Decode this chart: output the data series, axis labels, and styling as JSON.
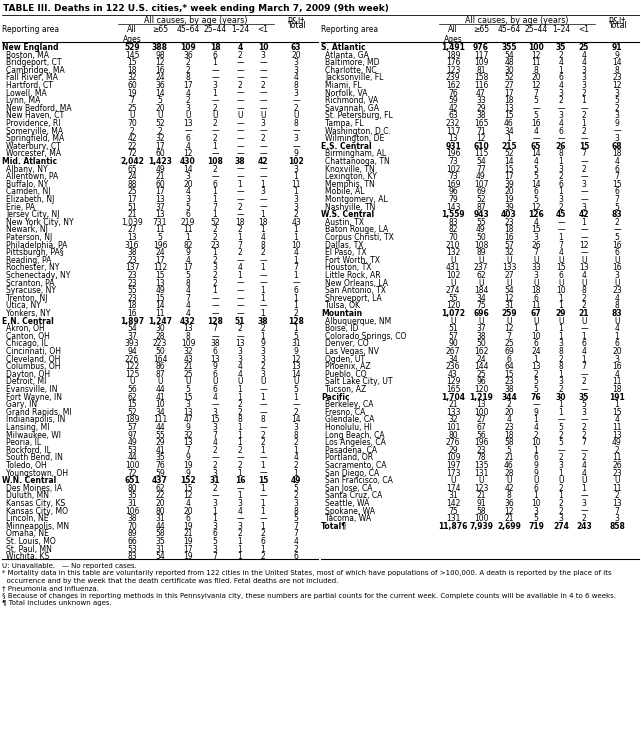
{
  "title": "TABLE III. Deaths in 122 U.S. cities,* week ending March 7, 2009 (9th week)",
  "left_rows": [
    [
      "New England",
      "529",
      "388",
      "109",
      "18",
      "4",
      "10",
      "63"
    ],
    [
      "Boston, MA",
      "145",
      "98",
      "36",
      "6",
      "2",
      "3",
      "20"
    ],
    [
      "Bridgeport, CT",
      "15",
      "12",
      "2",
      "1",
      "—",
      "—",
      "3"
    ],
    [
      "Cambridge, MA",
      "18",
      "16",
      "2",
      "—",
      "—",
      "—",
      "3"
    ],
    [
      "Fall River, MA",
      "32",
      "24",
      "8",
      "—",
      "—",
      "—",
      "4"
    ],
    [
      "Hartford, CT",
      "60",
      "36",
      "17",
      "3",
      "2",
      "2",
      "8"
    ],
    [
      "Lowell, MA",
      "19",
      "14",
      "4",
      "1",
      "—",
      "—",
      "3"
    ],
    [
      "Lynn, MA",
      "7",
      "5",
      "2",
      "—",
      "—",
      "—",
      "—"
    ],
    [
      "New Bedford, MA",
      "25",
      "20",
      "3",
      "2",
      "—",
      "—",
      "2"
    ],
    [
      "New Haven, CT",
      "U",
      "U",
      "U",
      "U",
      "U",
      "U",
      "U"
    ],
    [
      "Providence, RI",
      "70",
      "52",
      "13",
      "2",
      "—",
      "3",
      "8"
    ],
    [
      "Somerville, MA",
      "2",
      "2",
      "—",
      "—",
      "—",
      "—",
      "—"
    ],
    [
      "Springfield, MA",
      "42",
      "32",
      "6",
      "2",
      "—",
      "2",
      "3"
    ],
    [
      "Waterbury, CT",
      "22",
      "17",
      "4",
      "1",
      "—",
      "—",
      "—"
    ],
    [
      "Worcester, MA",
      "72",
      "60",
      "12",
      "—",
      "—",
      "—",
      "9"
    ],
    [
      "Mid. Atlantic",
      "2,042",
      "1,423",
      "430",
      "108",
      "38",
      "42",
      "102"
    ],
    [
      "Albany, NY",
      "65",
      "49",
      "14",
      "2",
      "—",
      "—",
      "3"
    ],
    [
      "Allentown, PA",
      "24",
      "21",
      "3",
      "—",
      "—",
      "—",
      "1"
    ],
    [
      "Buffalo, NY",
      "88",
      "60",
      "20",
      "6",
      "1",
      "1",
      "11"
    ],
    [
      "Camden, NJ",
      "25",
      "17",
      "4",
      "1",
      "—",
      "3",
      "1"
    ],
    [
      "Elizabeth, NJ",
      "17",
      "13",
      "3",
      "1",
      "—",
      "—",
      "3"
    ],
    [
      "Erie, PA",
      "51",
      "37",
      "5",
      "7",
      "2",
      "—",
      "3"
    ],
    [
      "Jersey City, NJ",
      "21",
      "13",
      "6",
      "1",
      "—",
      "1",
      "2"
    ],
    [
      "New York City, NY",
      "1,039",
      "731",
      "219",
      "52",
      "18",
      "18",
      "43"
    ],
    [
      "Newark, NJ",
      "27",
      "11",
      "11",
      "2",
      "2",
      "1",
      "1"
    ],
    [
      "Paterson, NJ",
      "13",
      "5",
      "1",
      "2",
      "1",
      "4",
      "1"
    ],
    [
      "Philadelphia, PA",
      "316",
      "196",
      "82",
      "23",
      "7",
      "8",
      "10"
    ],
    [
      "Pittsburgh, PA§",
      "38",
      "24",
      "9",
      "1",
      "2",
      "2",
      "4"
    ],
    [
      "Reading, PA",
      "23",
      "17",
      "4",
      "2",
      "—",
      "—",
      "1"
    ],
    [
      "Rochester, NY",
      "137",
      "112",
      "17",
      "3",
      "4",
      "1",
      "7"
    ],
    [
      "Schenectady, NY",
      "23",
      "15",
      "5",
      "2",
      "1",
      "—",
      "1"
    ],
    [
      "Scranton, PA",
      "23",
      "13",
      "8",
      "2",
      "—",
      "—",
      "—"
    ],
    [
      "Syracuse, NY",
      "55",
      "49",
      "4",
      "1",
      "—",
      "1",
      "6"
    ],
    [
      "Trenton, NJ",
      "23",
      "15",
      "7",
      "—",
      "—",
      "1",
      "1"
    ],
    [
      "Utica, NY",
      "18",
      "14",
      "4",
      "—",
      "—",
      "—",
      "1"
    ],
    [
      "Yonkers, NY",
      "16",
      "11",
      "4",
      "—",
      "—",
      "1",
      "2"
    ],
    [
      "E.N. Central",
      "1,897",
      "1,247",
      "432",
      "128",
      "51",
      "38",
      "128"
    ],
    [
      "Akron, OH",
      "54",
      "30",
      "13",
      "7",
      "2",
      "2",
      "1"
    ],
    [
      "Canton, OH",
      "37",
      "28",
      "8",
      "—",
      "—",
      "1",
      "5"
    ],
    [
      "Chicago, IL",
      "393",
      "223",
      "109",
      "38",
      "13",
      "9",
      "31"
    ],
    [
      "Cincinnati, OH",
      "94",
      "50",
      "32",
      "6",
      "3",
      "3",
      "9"
    ],
    [
      "Cleveland, OH",
      "226",
      "164",
      "43",
      "13",
      "3",
      "3",
      "12"
    ],
    [
      "Columbus, OH",
      "122",
      "86",
      "21",
      "9",
      "4",
      "2",
      "13"
    ],
    [
      "Dayton, OH",
      "125",
      "87",
      "25",
      "6",
      "4",
      "3",
      "14"
    ],
    [
      "Detroit, MI",
      "U",
      "U",
      "U",
      "U",
      "U",
      "U",
      "U"
    ],
    [
      "Evansville, IN",
      "56",
      "44",
      "5",
      "6",
      "1",
      "—",
      "5"
    ],
    [
      "Fort Wayne, IN",
      "62",
      "41",
      "15",
      "4",
      "1",
      "1",
      "1"
    ],
    [
      "Gary, IN",
      "15",
      "10",
      "3",
      "—",
      "2",
      "—",
      "—"
    ],
    [
      "Grand Rapids, MI",
      "52",
      "34",
      "13",
      "3",
      "2",
      "—",
      "2"
    ],
    [
      "Indianapolis, IN",
      "189",
      "111",
      "47",
      "15",
      "8",
      "8",
      "14"
    ],
    [
      "Lansing, MI",
      "57",
      "44",
      "9",
      "3",
      "1",
      "—",
      "3"
    ],
    [
      "Milwaukee, WI",
      "97",
      "55",
      "32",
      "7",
      "1",
      "2",
      "8"
    ],
    [
      "Peoria, IL",
      "49",
      "29",
      "13",
      "4",
      "1",
      "2",
      "2"
    ],
    [
      "Rockford, IL",
      "53",
      "41",
      "7",
      "2",
      "2",
      "1",
      "1"
    ],
    [
      "South Bend, IN",
      "44",
      "35",
      "9",
      "—",
      "—",
      "—",
      "4"
    ],
    [
      "Toledo, OH",
      "100",
      "76",
      "19",
      "2",
      "2",
      "1",
      "2"
    ],
    [
      "Youngstown, OH",
      "72",
      "59",
      "9",
      "3",
      "1",
      "—",
      "1"
    ],
    [
      "W.N. Central",
      "651",
      "437",
      "152",
      "31",
      "16",
      "15",
      "49"
    ],
    [
      "Des Moines, IA",
      "80",
      "62",
      "15",
      "2",
      "—",
      "1",
      "5"
    ],
    [
      "Duluth, MN",
      "35",
      "22",
      "12",
      "—",
      "1",
      "—",
      "2"
    ],
    [
      "Kansas City, KS",
      "31",
      "20",
      "4",
      "3",
      "3",
      "1",
      "3"
    ],
    [
      "Kansas City, MO",
      "106",
      "80",
      "20",
      "1",
      "4",
      "1",
      "8"
    ],
    [
      "Lincoln, NE",
      "38",
      "31",
      "6",
      "1",
      "—",
      "—",
      "5"
    ],
    [
      "Minneapolis, MN",
      "70",
      "44",
      "19",
      "3",
      "3",
      "1",
      "7"
    ],
    [
      "Omaha, NE",
      "89",
      "58",
      "21",
      "6",
      "2",
      "2",
      "7"
    ],
    [
      "St. Louis, MO",
      "66",
      "35",
      "19",
      "5",
      "1",
      "6",
      "4"
    ],
    [
      "St. Paul, MN",
      "53",
      "31",
      "17",
      "3",
      "1",
      "1",
      "2"
    ],
    [
      "Wichita, KS",
      "83",
      "54",
      "19",
      "7",
      "1",
      "2",
      "6"
    ]
  ],
  "right_rows": [
    [
      "S. Atlantic",
      "1,491",
      "976",
      "355",
      "100",
      "35",
      "25",
      "91"
    ],
    [
      "Atlanta, GA",
      "189",
      "117",
      "54",
      "12",
      "2",
      "4",
      "9"
    ],
    [
      "Baltimore, MD",
      "176",
      "109",
      "48",
      "11",
      "4",
      "4",
      "14"
    ],
    [
      "Charlotte, NC",
      "123",
      "81",
      "30",
      "8",
      "1",
      "3",
      "8"
    ],
    [
      "Jacksonville, FL",
      "239",
      "158",
      "52",
      "20",
      "6",
      "3",
      "23"
    ],
    [
      "Miami, FL",
      "162",
      "116",
      "27",
      "12",
      "4",
      "3",
      "12"
    ],
    [
      "Norfolk, VA",
      "76",
      "47",
      "17",
      "7",
      "3",
      "2",
      "3"
    ],
    [
      "Richmond, VA",
      "59",
      "33",
      "18",
      "5",
      "2",
      "1",
      "5"
    ],
    [
      "Savannah, GA",
      "42",
      "29",
      "13",
      "—",
      "—",
      "—",
      "2"
    ],
    [
      "St. Petersburg, FL",
      "63",
      "38",
      "15",
      "5",
      "3",
      "2",
      "3"
    ],
    [
      "Tampa, FL",
      "232",
      "165",
      "46",
      "16",
      "4",
      "1",
      "9"
    ],
    [
      "Washington, D.C.",
      "117",
      "71",
      "34",
      "4",
      "6",
      "2",
      "—"
    ],
    [
      "Wilmington, DE",
      "13",
      "12",
      "1",
      "—",
      "—",
      "—",
      "3"
    ],
    [
      "E.S. Central",
      "931",
      "610",
      "215",
      "65",
      "26",
      "15",
      "68"
    ],
    [
      "Birmingham, AL",
      "196",
      "115",
      "52",
      "14",
      "8",
      "7",
      "18"
    ],
    [
      "Chattanooga, TN",
      "73",
      "54",
      "14",
      "4",
      "1",
      "—",
      "4"
    ],
    [
      "Knoxville, TN",
      "102",
      "77",
      "15",
      "5",
      "3",
      "2",
      "6"
    ],
    [
      "Lexington, KY",
      "73",
      "49",
      "17",
      "5",
      "2",
      "—",
      "7"
    ],
    [
      "Memphis, TN",
      "169",
      "107",
      "39",
      "14",
      "6",
      "3",
      "15"
    ],
    [
      "Mobile, AL",
      "96",
      "69",
      "20",
      "6",
      "1",
      "—",
      "6"
    ],
    [
      "Montgomery, AL",
      "79",
      "52",
      "19",
      "5",
      "3",
      "—",
      "7"
    ],
    [
      "Nashville, TN",
      "143",
      "87",
      "39",
      "12",
      "2",
      "3",
      "5"
    ],
    [
      "W.S. Central",
      "1,559",
      "943",
      "403",
      "126",
      "45",
      "42",
      "83"
    ],
    [
      "Austin, TX",
      "83",
      "55",
      "23",
      "4",
      "—",
      "1",
      "2"
    ],
    [
      "Baton Rouge, LA",
      "82",
      "49",
      "18",
      "15",
      "—",
      "—",
      "—"
    ],
    [
      "Corpus Christi, TX",
      "70",
      "50",
      "16",
      "3",
      "1",
      "—",
      "5"
    ],
    [
      "Dallas, TX",
      "210",
      "108",
      "57",
      "26",
      "7",
      "12",
      "16"
    ],
    [
      "El Paso, TX",
      "132",
      "89",
      "32",
      "7",
      "4",
      "—",
      "6"
    ],
    [
      "Fort Worth, TX",
      "U",
      "U",
      "U",
      "U",
      "U",
      "U",
      "U"
    ],
    [
      "Houston, TX",
      "431",
      "237",
      "133",
      "33",
      "15",
      "13",
      "16"
    ],
    [
      "Little Rock, AR",
      "102",
      "62",
      "27",
      "3",
      "6",
      "4",
      "3"
    ],
    [
      "New Orleans, LA",
      "U",
      "U",
      "U",
      "U",
      "U",
      "U",
      "U"
    ],
    [
      "San Antonio, TX",
      "274",
      "184",
      "54",
      "18",
      "10",
      "8",
      "23"
    ],
    [
      "Shreveport, LA",
      "55",
      "34",
      "12",
      "6",
      "1",
      "2",
      "4"
    ],
    [
      "Tulsa, OK",
      "120",
      "75",
      "31",
      "11",
      "1",
      "2",
      "8"
    ],
    [
      "Mountain",
      "1,072",
      "696",
      "259",
      "67",
      "29",
      "21",
      "83"
    ],
    [
      "Albuquerque, NM",
      "U",
      "U",
      "U",
      "U",
      "U",
      "U",
      "U"
    ],
    [
      "Boise, ID",
      "51",
      "37",
      "12",
      "1",
      "1",
      "—",
      "4"
    ],
    [
      "Colorado Springs, CO",
      "57",
      "38",
      "7",
      "10",
      "1",
      "1",
      "1"
    ],
    [
      "Denver, CO",
      "90",
      "50",
      "25",
      "6",
      "3",
      "6",
      "6"
    ],
    [
      "Las Vegas, NV",
      "267",
      "162",
      "69",
      "24",
      "8",
      "4",
      "20"
    ],
    [
      "Ogden, UT",
      "34",
      "24",
      "6",
      "1",
      "2",
      "1",
      "3"
    ],
    [
      "Phoenix, AZ",
      "236",
      "144",
      "64",
      "13",
      "8",
      "7",
      "16"
    ],
    [
      "Pueblo, CO",
      "43",
      "25",
      "15",
      "2",
      "1",
      "—",
      "4"
    ],
    [
      "Salt Lake City, UT",
      "129",
      "96",
      "23",
      "5",
      "3",
      "2",
      "11"
    ],
    [
      "Tucson, AZ",
      "165",
      "120",
      "38",
      "5",
      "2",
      "—",
      "18"
    ],
    [
      "Pacific",
      "1,704",
      "1,219",
      "344",
      "76",
      "30",
      "35",
      "191"
    ],
    [
      "Berkeley, CA",
      "21",
      "13",
      "2",
      "—",
      "1",
      "5",
      "1"
    ],
    [
      "Fresno, CA",
      "133",
      "100",
      "20",
      "9",
      "1",
      "3",
      "15"
    ],
    [
      "Glendale, CA",
      "32",
      "27",
      "4",
      "1",
      "—",
      "—",
      "4"
    ],
    [
      "Honolulu, HI",
      "101",
      "67",
      "23",
      "4",
      "5",
      "2",
      "11"
    ],
    [
      "Long Beach, CA",
      "80",
      "56",
      "18",
      "2",
      "2",
      "2",
      "13"
    ],
    [
      "Los Angeles, CA",
      "276",
      "196",
      "58",
      "10",
      "5",
      "7",
      "49"
    ],
    [
      "Pasadena, CA",
      "29",
      "23",
      "5",
      "1",
      "—",
      "—",
      "2"
    ],
    [
      "Portland, OR",
      "109",
      "78",
      "21",
      "6",
      "2",
      "2",
      "11"
    ],
    [
      "Sacramento, CA",
      "197",
      "135",
      "46",
      "9",
      "3",
      "4",
      "26"
    ],
    [
      "San Diego, CA",
      "173",
      "131",
      "28",
      "9",
      "1",
      "4",
      "23"
    ],
    [
      "San Francisco, CA",
      "U",
      "U",
      "U",
      "U",
      "U",
      "U",
      "U"
    ],
    [
      "San Jose, CA",
      "174",
      "123",
      "42",
      "6",
      "2",
      "1",
      "11"
    ],
    [
      "Santa Cruz, CA",
      "31",
      "21",
      "8",
      "1",
      "1",
      "—",
      "2"
    ],
    [
      "Seattle, WA",
      "142",
      "91",
      "36",
      "10",
      "2",
      "3",
      "13"
    ],
    [
      "Spokane, WA",
      "75",
      "58",
      "12",
      "3",
      "2",
      "—",
      "7"
    ],
    [
      "Tacoma, WA",
      "131",
      "100",
      "21",
      "5",
      "3",
      "2",
      "3"
    ],
    [
      "Total¶",
      "11,876",
      "7,939",
      "2,699",
      "719",
      "274",
      "243",
      "858"
    ]
  ],
  "footnotes": [
    "U: Unavailable.   — No reported cases.",
    "* Mortality data in this table are voluntarily reported from 122 cities in the United States, most of which have populations of >100,000. A death is reported by the place of its",
    "  occurrence and by the week that the death certificate was filed. Fetal deaths are not included.",
    "† Pneumonia and influenza.",
    "§ Because of changes in reporting methods in this Pennsylvania city, these numbers are partial counts for the current week. Complete counts will be available in 4 to 6 weeks.",
    "¶ Total includes unknown ages."
  ],
  "bg_color": "#ffffff",
  "sections": [
    "New England",
    "Mid. Atlantic",
    "E.N. Central",
    "W.N. Central",
    "S. Atlantic",
    "E.S. Central",
    "W.S. Central",
    "Mountain",
    "Pacific",
    "Total"
  ]
}
